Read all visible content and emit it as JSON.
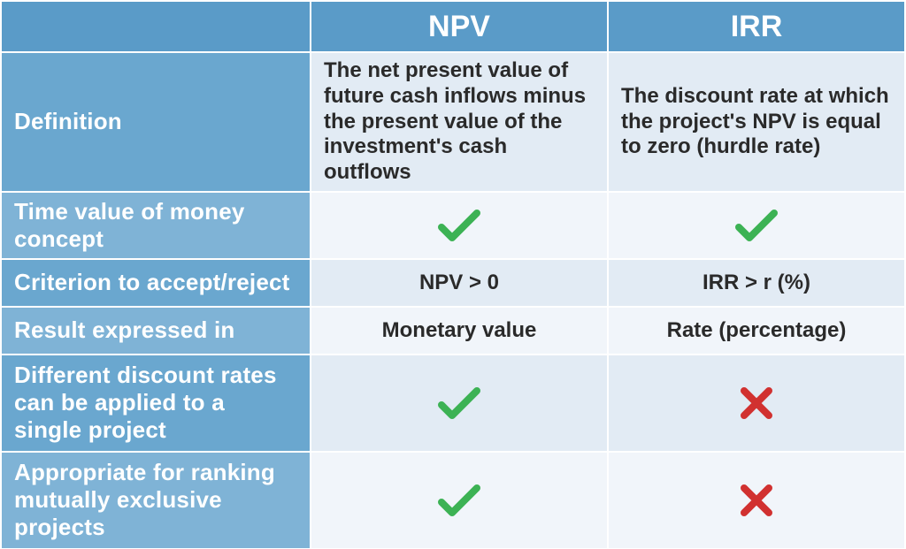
{
  "colors": {
    "header_bg": "#5a9bc8",
    "label_bg_light": "#7fb3d6",
    "label_bg_mid": "#6aa7cf",
    "cell_bg_light": "#f1f5fa",
    "cell_bg_mid": "#e2ebf4",
    "check_color": "#3cb254",
    "cross_color": "#d13130",
    "text_dark": "#2a2a2a",
    "text_white": "#ffffff"
  },
  "headers": {
    "col1": "NPV",
    "col2": "IRR"
  },
  "rows": [
    {
      "label": "Definition",
      "type": "text",
      "npv": "The net present value of future cash inflows minus the present value of the investment's cash outflows",
      "irr": "The discount rate at which the project's NPV is equal to zero (hurdle rate)",
      "height": "definition",
      "label_bg": "mid",
      "cell_bg": "mid",
      "text_align": "left"
    },
    {
      "label": "Time value of money concept",
      "type": "icon",
      "npv": "check",
      "irr": "check",
      "height": "narrow",
      "label_bg": "light",
      "cell_bg": "light"
    },
    {
      "label": "Criterion to accept/reject",
      "type": "text",
      "npv": "NPV > 0",
      "irr": "IRR > r (%)",
      "height": "narrow",
      "label_bg": "mid",
      "cell_bg": "mid",
      "text_align": "center"
    },
    {
      "label": "Result expressed in",
      "type": "text",
      "npv": "Monetary value",
      "irr": "Rate (percentage)",
      "height": "narrow",
      "label_bg": "light",
      "cell_bg": "light",
      "text_align": "center"
    },
    {
      "label": "Different discount rates can be applied to a single project",
      "type": "icon",
      "npv": "check",
      "irr": "cross",
      "height": "medium",
      "label_bg": "mid",
      "cell_bg": "mid"
    },
    {
      "label": "Appropriate for ranking mutually exclusive projects",
      "type": "icon",
      "npv": "check",
      "irr": "cross",
      "height": "medium",
      "label_bg": "light",
      "cell_bg": "light"
    }
  ]
}
